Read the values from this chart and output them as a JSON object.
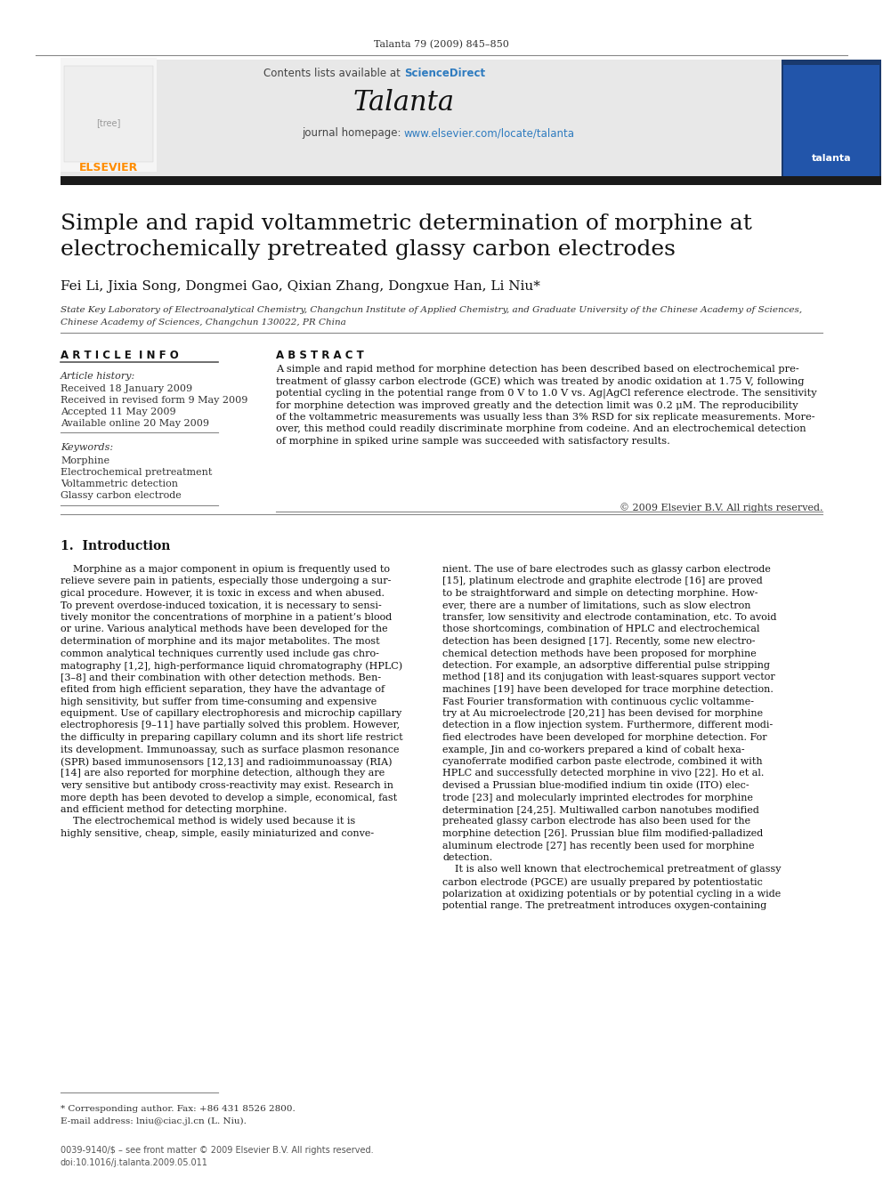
{
  "page_bg": "#ffffff",
  "header_journal": "Talanta 79 (2009) 845–850",
  "header_bg": "#e8e8e8",
  "journal_name": "Talanta",
  "contents_line": "Contents lists available at ",
  "sciencedirect_text": "ScienceDirect",
  "sciencedirect_color": "#2e7bbf",
  "homepage_line": "journal homepage: ",
  "homepage_url": "www.elsevier.com/locate/talanta",
  "homepage_url_color": "#2e7bbf",
  "elsevier_color": "#ff8c00",
  "black_bar_color": "#1a1a1a",
  "paper_title": "Simple and rapid voltammetric determination of morphine at\nelectrochemically pretreated glassy carbon electrodes",
  "authors": "Fei Li, Jixia Song, Dongmei Gao, Qixian Zhang, Dongxue Han, Li Niu*",
  "affiliation1": "State Key Laboratory of Electroanalytical Chemistry, Changchun Institute of Applied Chemistry, and Graduate University of the Chinese Academy of Sciences,",
  "affiliation2": "Chinese Academy of Sciences, Changchun 130022, PR China",
  "article_info_header": "A R T I C L E  I N F O",
  "abstract_header": "A B S T R A C T",
  "article_history_label": "Article history:",
  "received1": "Received 18 January 2009",
  "received2": "Received in revised form 9 May 2009",
  "accepted": "Accepted 11 May 2009",
  "available": "Available online 20 May 2009",
  "keywords_label": "Keywords:",
  "kw1": "Morphine",
  "kw2": "Electrochemical pretreatment",
  "kw3": "Voltammetric detection",
  "kw4": "Glassy carbon electrode",
  "abstract_text": "A simple and rapid method for morphine detection has been described based on electrochemical pre-\ntreatment of glassy carbon electrode (GCE) which was treated by anodic oxidation at 1.75 V, following\npotential cycling in the potential range from 0 V to 1.0 V vs. Ag|AgCl reference electrode. The sensitivity\nfor morphine detection was improved greatly and the detection limit was 0.2 μM. The reproducibility\nof the voltammetric measurements was usually less than 3% RSD for six replicate measurements. More-\nover, this method could readily discriminate morphine from codeine. And an electrochemical detection\nof morphine in spiked urine sample was succeeded with satisfactory results.",
  "copyright": "© 2009 Elsevier B.V. All rights reserved.",
  "intro_header": "1.  Introduction",
  "intro_col1_lines": [
    "    Morphine as a major component in opium is frequently used to",
    "relieve severe pain in patients, especially those undergoing a sur-",
    "gical procedure. However, it is toxic in excess and when abused.",
    "To prevent overdose-induced toxication, it is necessary to sensi-",
    "tively monitor the concentrations of morphine in a patient’s blood",
    "or urine. Various analytical methods have been developed for the",
    "determination of morphine and its major metabolites. The most",
    "common analytical techniques currently used include gas chro-",
    "matography [1,2], high-performance liquid chromatography (HPLC)",
    "[3–8] and their combination with other detection methods. Ben-",
    "efited from high efficient separation, they have the advantage of",
    "high sensitivity, but suffer from time-consuming and expensive",
    "equipment. Use of capillary electrophoresis and microchip capillary",
    "electrophoresis [9–11] have partially solved this problem. However,",
    "the difficulty in preparing capillary column and its short life restrict",
    "its development. Immunoassay, such as surface plasmon resonance",
    "(SPR) based immunosensors [12,13] and radioimmunoassay (RIA)",
    "[14] are also reported for morphine detection, although they are",
    "very sensitive but antibody cross-reactivity may exist. Research in",
    "more depth has been devoted to develop a simple, economical, fast",
    "and efficient method for detecting morphine.",
    "    The electrochemical method is widely used because it is",
    "highly sensitive, cheap, simple, easily miniaturized and conve-"
  ],
  "intro_col2_lines": [
    "nient. The use of bare electrodes such as glassy carbon electrode",
    "[15], platinum electrode and graphite electrode [16] are proved",
    "to be straightforward and simple on detecting morphine. How-",
    "ever, there are a number of limitations, such as slow electron",
    "transfer, low sensitivity and electrode contamination, etc. To avoid",
    "those shortcomings, combination of HPLC and electrochemical",
    "detection has been designed [17]. Recently, some new electro-",
    "chemical detection methods have been proposed for morphine",
    "detection. For example, an adsorptive differential pulse stripping",
    "method [18] and its conjugation with least-squares support vector",
    "machines [19] have been developed for trace morphine detection.",
    "Fast Fourier transformation with continuous cyclic voltamme-",
    "try at Au microelectrode [20,21] has been devised for morphine",
    "detection in a flow injection system. Furthermore, different modi-",
    "fied electrodes have been developed for morphine detection. For",
    "example, Jin and co-workers prepared a kind of cobalt hexa-",
    "cyanoferrate modified carbon paste electrode, combined it with",
    "HPLC and successfully detected morphine in vivo [22]. Ho et al.",
    "devised a Prussian blue-modified indium tin oxide (ITO) elec-",
    "trode [23] and molecularly imprinted electrodes for morphine",
    "determination [24,25]. Multiwalled carbon nanotubes modified",
    "preheated glassy carbon electrode has also been used for the",
    "morphine detection [26]. Prussian blue film modified-palladized",
    "aluminum electrode [27] has recently been used for morphine",
    "detection.",
    "    It is also well known that electrochemical pretreatment of glassy",
    "carbon electrode (PGCE) are usually prepared by potentiostatic",
    "polarization at oxidizing potentials or by potential cycling in a wide",
    "potential range. The pretreatment introduces oxygen-containing"
  ],
  "footnote1": "* Corresponding author. Fax: +86 431 8526 2800.",
  "footnote2": "E-mail address: lniu@ciac.jl.cn (L. Niu).",
  "footer1": "0039-9140/$ – see front matter © 2009 Elsevier B.V. All rights reserved.",
  "footer2": "doi:10.1016/j.talanta.2009.05.011"
}
